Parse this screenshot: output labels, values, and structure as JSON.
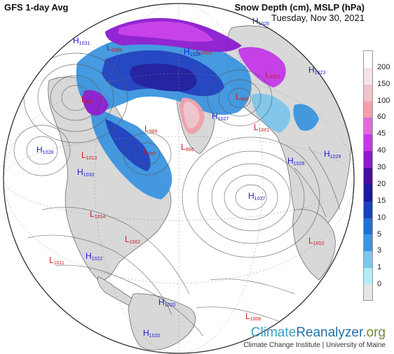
{
  "header": {
    "title_left": "GFS 1-day Avg",
    "title_right": "Snow Depth (cm), MSLP (hPa)",
    "date": "Tuesday, Nov 30, 2021"
  },
  "legend": {
    "ticks": [
      "200",
      "150",
      "100",
      "60",
      "45",
      "40",
      "30",
      "20",
      "15",
      "10",
      "5",
      "3",
      "1",
      "0"
    ],
    "colors": [
      "#ffffff",
      "#f6e3e6",
      "#efc4cc",
      "#f1a0ac",
      "#e26bd8",
      "#c438e8",
      "#8c1bd1",
      "#4a0ba6",
      "#1a1a9c",
      "#1b3fbf",
      "#1f6fd6",
      "#3c95df",
      "#7fc6ec",
      "#b3ecf6",
      "#e6e6e6"
    ]
  },
  "pressure_centers": [
    {
      "type": "H",
      "value": "1031",
      "color": "#1b1bd1"
    },
    {
      "type": "H",
      "value": "1028",
      "color": "#1b1bd1"
    },
    {
      "type": "L",
      "value": "1009",
      "color": "#c81e1e"
    },
    {
      "type": "L",
      "value": "997",
      "color": "#c81e1e"
    },
    {
      "type": "L",
      "value": "1013",
      "color": "#c81e1e"
    },
    {
      "type": "H",
      "value": "1033",
      "color": "#1b1bd1"
    },
    {
      "type": "L",
      "value": "1014",
      "color": "#c81e1e"
    },
    {
      "type": "L",
      "value": "1011",
      "color": "#c81e1e"
    },
    {
      "type": "H",
      "value": "1022",
      "color": "#1b1bd1"
    },
    {
      "type": "L",
      "value": "1002",
      "color": "#c81e1e"
    },
    {
      "type": "L",
      "value": "997",
      "color": "#c81e1e"
    },
    {
      "type": "L",
      "value": "986",
      "color": "#c81e1e"
    },
    {
      "type": "H",
      "value": "1037",
      "color": "#1b1bd1"
    },
    {
      "type": "L",
      "value": "988",
      "color": "#c81e1e"
    },
    {
      "type": "L",
      "value": "1001",
      "color": "#c81e1e"
    },
    {
      "type": "H",
      "value": "1027",
      "color": "#1b1bd1"
    },
    {
      "type": "H",
      "value": "1028",
      "color": "#1b1bd1"
    },
    {
      "type": "H",
      "value": "1029",
      "color": "#1b1bd1"
    },
    {
      "type": "L",
      "value": "1010",
      "color": "#c81e1e"
    },
    {
      "type": "H",
      "value": "1023",
      "color": "#1b1bd1"
    },
    {
      "type": "L",
      "value": "1001",
      "color": "#c81e1e"
    },
    {
      "type": "H",
      "value": "1024",
      "color": "#1b1bd1"
    },
    {
      "type": "H",
      "value": "1026",
      "color": "#1b1bd1"
    },
    {
      "type": "L",
      "value": "1003",
      "color": "#c81e1e"
    },
    {
      "type": "L",
      "value": "989",
      "color": "#c81e1e"
    },
    {
      "type": "H",
      "value": "1020",
      "color": "#1b1bd1"
    },
    {
      "type": "L",
      "value": "1008",
      "color": "#c81e1e"
    },
    {
      "type": "H",
      "value": "1020",
      "color": "#1b1bd1"
    }
  ],
  "branding": {
    "name_part1": "Climate",
    "name_part2": "Reanalyzer",
    "name_part3": ".org",
    "subtitle": "Climate Change Institute | University of Maine"
  }
}
